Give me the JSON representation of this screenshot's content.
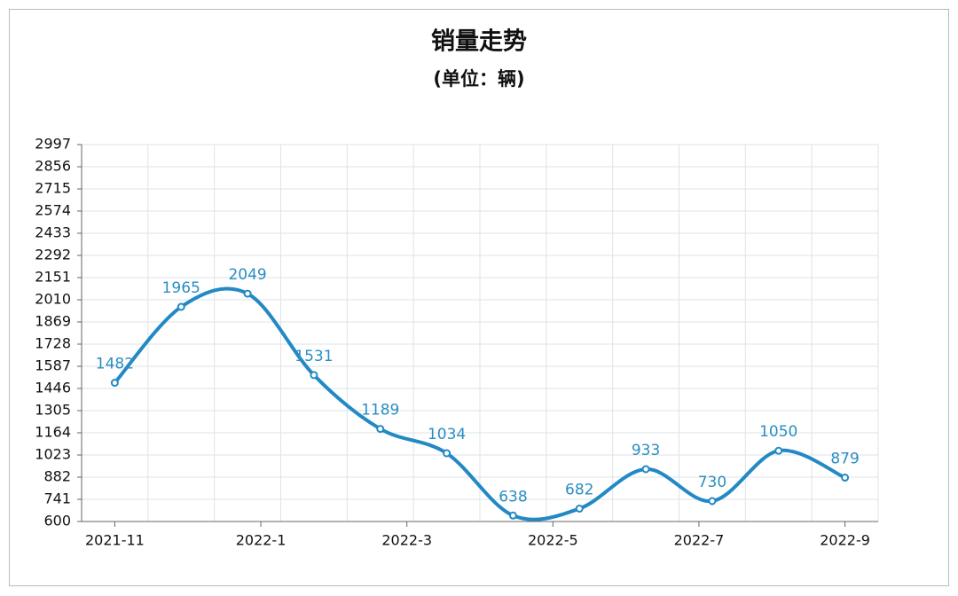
{
  "chart_data": {
    "type": "line",
    "title": "销量走势",
    "subtitle": "(单位：辆)",
    "x": [
      0,
      1,
      2,
      3,
      4,
      5,
      6,
      7,
      8,
      9,
      10,
      11
    ],
    "xlim": [
      -0.5,
      11.5
    ],
    "xticks": [
      {
        "value": 0,
        "label": "2021-11"
      },
      {
        "value": 2.2,
        "label": "2022-1"
      },
      {
        "value": 4.4,
        "label": "2022-3"
      },
      {
        "value": 6.6,
        "label": "2022-5"
      },
      {
        "value": 8.8,
        "label": "2022-7"
      },
      {
        "value": 11,
        "label": "2022-9"
      }
    ],
    "series": [
      {
        "name": "销量",
        "color": "#2389c4",
        "values": [
          1482,
          1965,
          2049,
          1531,
          1189,
          1034,
          638,
          682,
          933,
          730,
          1050,
          879
        ]
      }
    ],
    "ylim": [
      600,
      2997
    ],
    "yticks": [
      600,
      741,
      882,
      1023,
      1164,
      1305,
      1446,
      1587,
      1728,
      1869,
      2010,
      2151,
      2292,
      2433,
      2574,
      2715,
      2856,
      2997
    ],
    "grid": true
  }
}
